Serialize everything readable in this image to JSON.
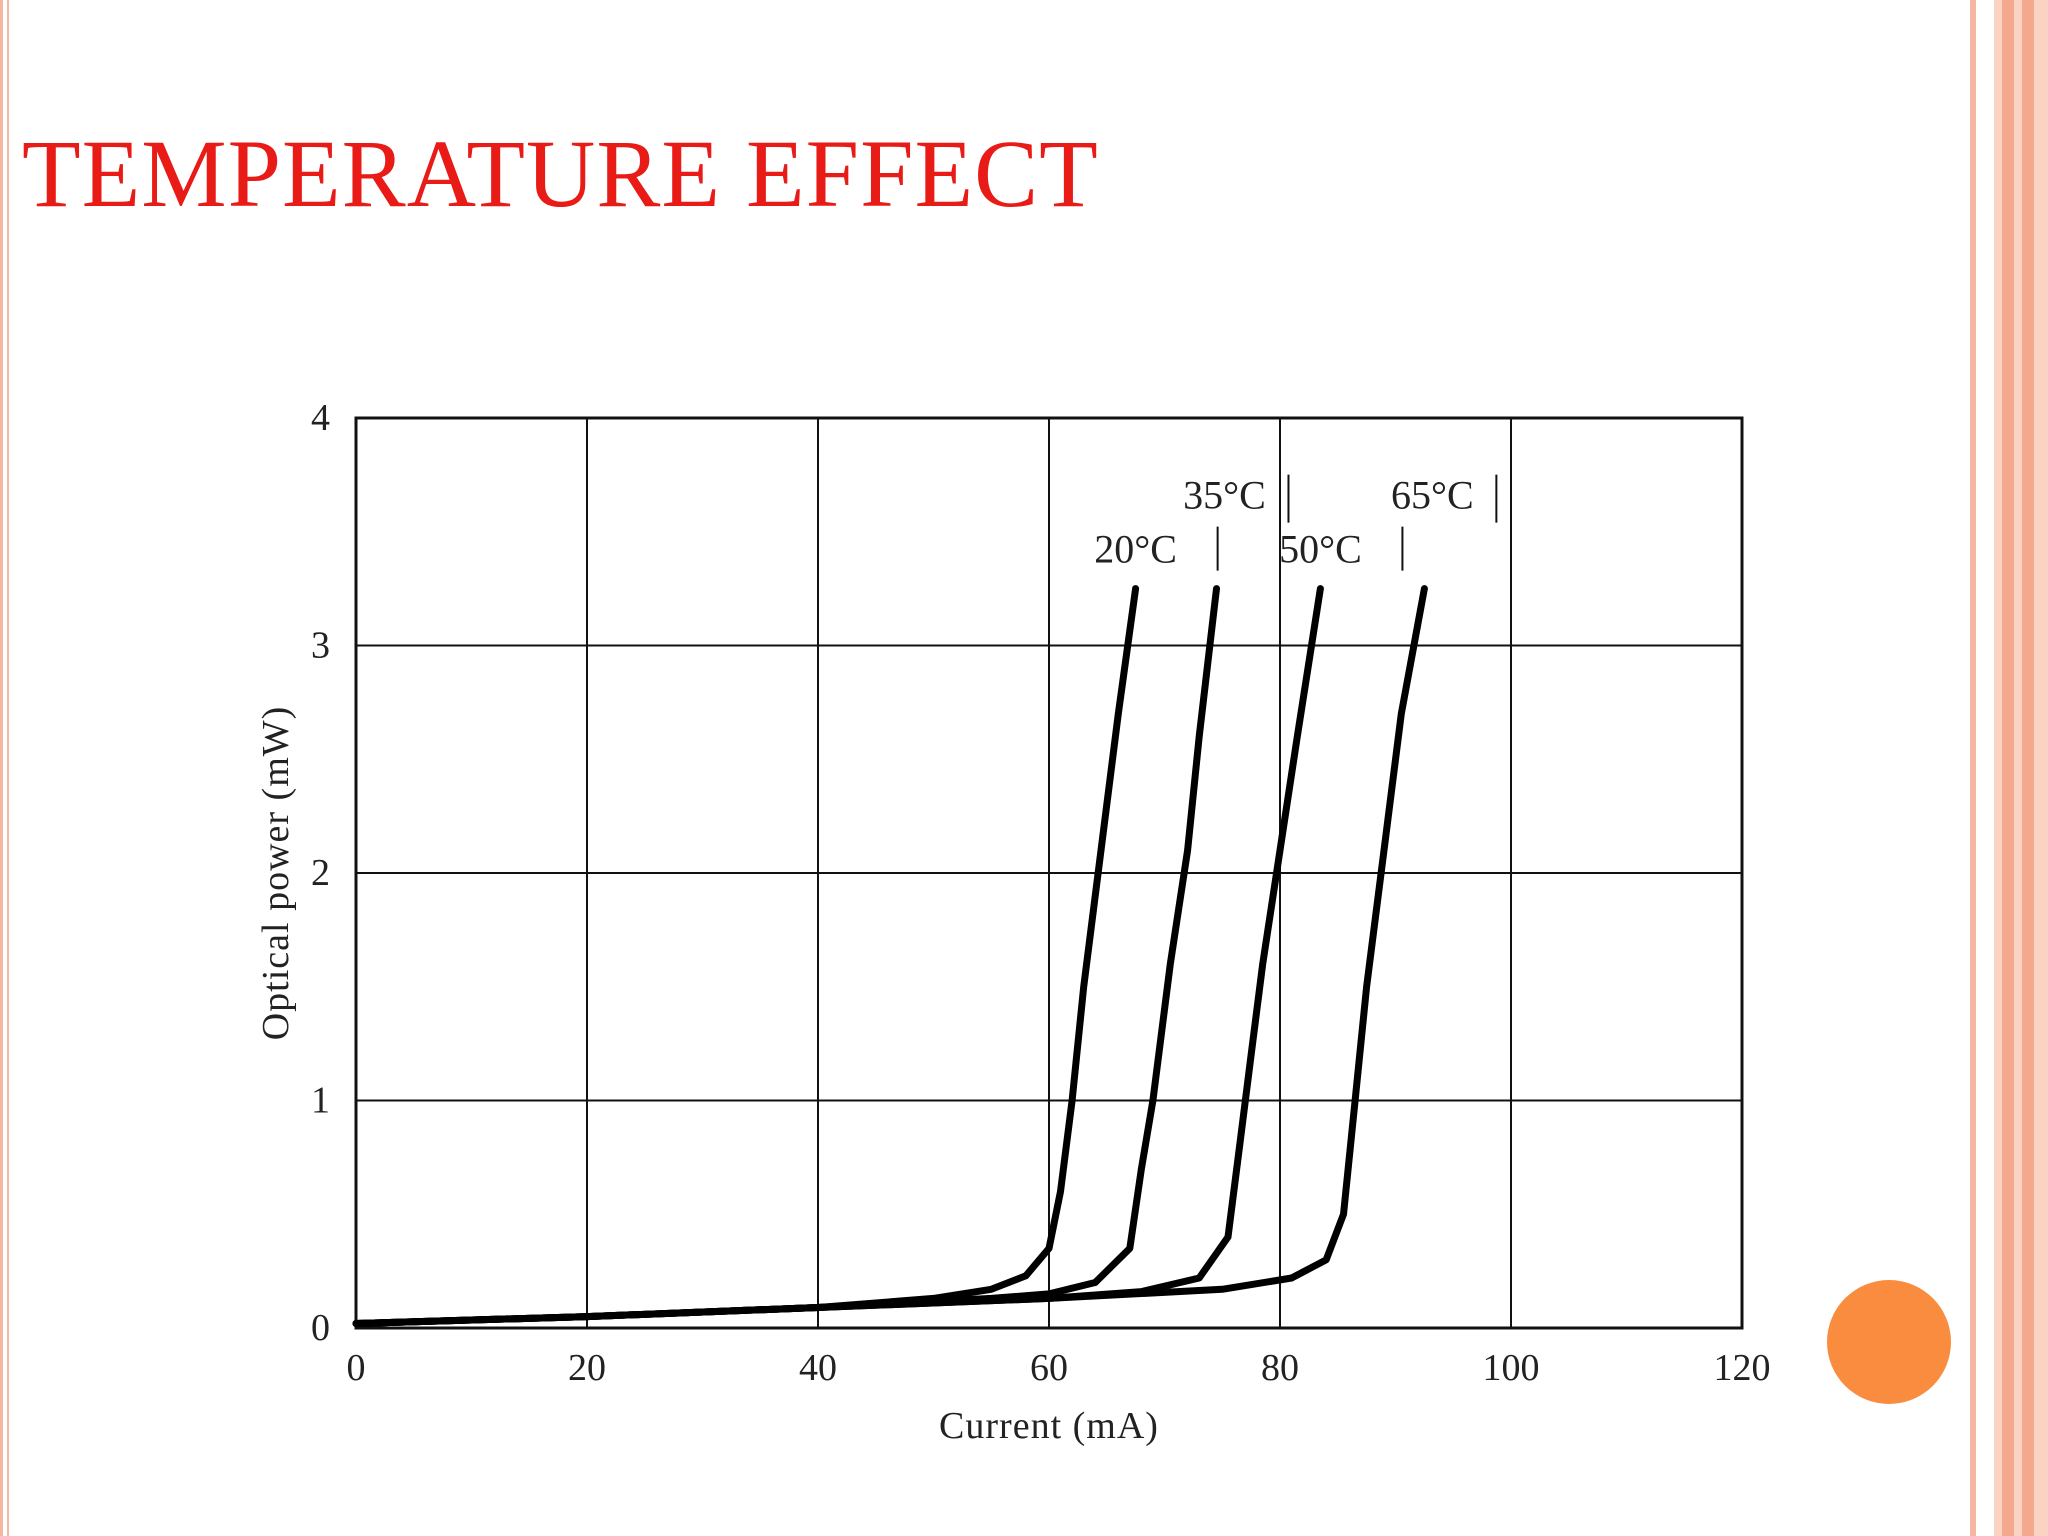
{
  "slide": {
    "title": "TEMPERATURE EFFECT",
    "accent_color": "#e81b17",
    "decor_color": "#f98c3f",
    "border_color": "#f6b7a0"
  },
  "chart_data": {
    "type": "line",
    "title": "",
    "xlabel": "Current (mA)",
    "ylabel": "Optical power (mW)",
    "xlim": [
      0,
      120
    ],
    "ylim": [
      0,
      4
    ],
    "xticks": [
      "0",
      "20",
      "40",
      "60",
      "80",
      "100",
      "120"
    ],
    "yticks": [
      "0",
      "1",
      "2",
      "3",
      "4"
    ],
    "grid": true,
    "series": [
      {
        "name": "20°C",
        "x": [
          0,
          20,
          40,
          50,
          55,
          58,
          60,
          61,
          62,
          63,
          64.5,
          66,
          67.5
        ],
        "y": [
          0.02,
          0.05,
          0.09,
          0.13,
          0.17,
          0.23,
          0.35,
          0.6,
          1.0,
          1.5,
          2.1,
          2.7,
          3.25
        ]
      },
      {
        "name": "35°C",
        "x": [
          0,
          20,
          40,
          55,
          60,
          64,
          67,
          68,
          69,
          70.5,
          72,
          73,
          74.5
        ],
        "y": [
          0.02,
          0.05,
          0.09,
          0.13,
          0.15,
          0.2,
          0.35,
          0.7,
          1.0,
          1.6,
          2.1,
          2.6,
          3.25
        ]
      },
      {
        "name": "50°C",
        "x": [
          0,
          20,
          40,
          60,
          68,
          73,
          75.5,
          76.5,
          77.5,
          78.5,
          80,
          81.5,
          83.5
        ],
        "y": [
          0.02,
          0.05,
          0.09,
          0.13,
          0.16,
          0.22,
          0.4,
          0.8,
          1.2,
          1.6,
          2.1,
          2.6,
          3.25
        ]
      },
      {
        "name": "65°C",
        "x": [
          0,
          20,
          40,
          60,
          75,
          81,
          84,
          85.5,
          86.5,
          87.5,
          89,
          90.5,
          92.5
        ],
        "y": [
          0.02,
          0.05,
          0.09,
          0.13,
          0.17,
          0.22,
          0.3,
          0.5,
          1.0,
          1.5,
          2.1,
          2.7,
          3.25
        ]
      }
    ]
  }
}
